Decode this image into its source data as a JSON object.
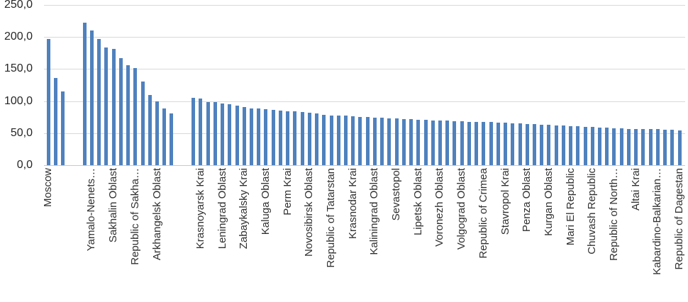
{
  "chart_data": {
    "type": "bar",
    "title": "",
    "xlabel": "",
    "ylabel": "",
    "ylim": [
      0,
      250
    ],
    "y_tick_step": 50,
    "y_tick_labels": [
      "0,0",
      "50,0",
      "100,0",
      "150,0",
      "200,0",
      "250,0"
    ],
    "grid": true,
    "legend": false,
    "bar_color": "#4f81bd",
    "gridline_color": "#d9d9d9",
    "note": "Single blue series of thin bars; blank slots (null) act as group separators; only every 3rd category is labeled on the x-axis",
    "categories": [
      "Moscow",
      "",
      "",
      "",
      "",
      "",
      "Yamalo-Nenets…",
      "",
      "",
      "Sakhalin Oblast",
      "",
      "",
      "Republic of Sakha…",
      "",
      "",
      "Arkhangelsk Oblast",
      "",
      "",
      "",
      "",
      "",
      "Krasnoyarsk Krai",
      "",
      "",
      "Leningrad Oblast",
      "",
      "",
      "Zabaykalsky Krai",
      "",
      "",
      "Kaluga Oblast",
      "",
      "",
      "Perm Krai",
      "",
      "",
      "Novosibirsk Oblast",
      "",
      "",
      "Republic of Tatarstan",
      "",
      "",
      "Krasnodar Krai",
      "",
      "",
      "Kaliningrad Oblast",
      "",
      "",
      "Sevastopol",
      "",
      "",
      "Lipetsk Oblast",
      "",
      "",
      "Voronezh Oblast",
      "",
      "",
      "Volgograd Oblast",
      "",
      "",
      "Republic of Crimea",
      "",
      "",
      "Stavropol Krai",
      "",
      "",
      "Penza Oblast",
      "",
      "",
      "Kurgan Oblast",
      "",
      "",
      "Mari El Republic",
      "",
      "",
      "Chuvash Republic",
      "",
      "",
      "Republic of North…",
      "",
      "",
      "Altai Krai",
      "",
      "",
      "Kabardino-Balkarian…",
      "",
      "",
      "Republic of Dagestan"
    ],
    "values": [
      197,
      136,
      115,
      null,
      null,
      222,
      210,
      197,
      184,
      182,
      167,
      156,
      152,
      131,
      110,
      100,
      88,
      81,
      null,
      null,
      105,
      104,
      99,
      98,
      96,
      95,
      93,
      91,
      89,
      88,
      87,
      86,
      85,
      84,
      84,
      83,
      82,
      81,
      79,
      78,
      78,
      77,
      76,
      75,
      75,
      74,
      74,
      73,
      73,
      72,
      72,
      71,
      71,
      70,
      70,
      70,
      69,
      69,
      68,
      68,
      67,
      67,
      66,
      66,
      65,
      65,
      64,
      64,
      63,
      63,
      62,
      62,
      61,
      61,
      60,
      60,
      59,
      59,
      58,
      58,
      57,
      57,
      57,
      56,
      56,
      55,
      55,
      54
    ]
  }
}
